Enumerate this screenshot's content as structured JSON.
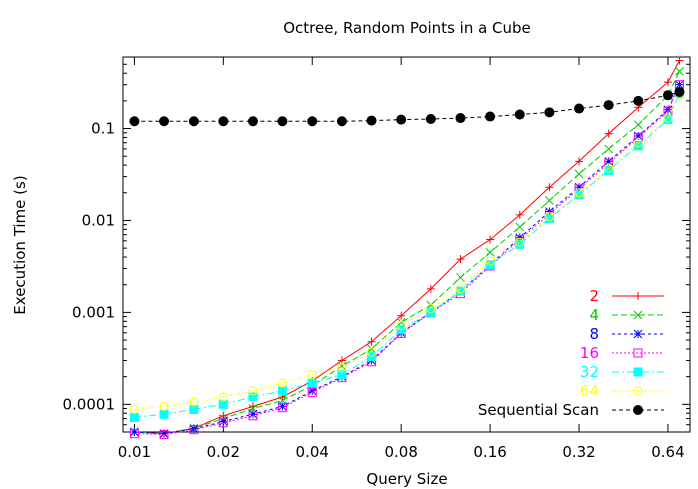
{
  "chart_data": {
    "type": "line",
    "title": "Octree, Random Points in a Cube",
    "xlabel": "Query Size",
    "ylabel": "Execution Time (s)",
    "x_scale": "log2",
    "y_scale": "log10",
    "xlim": [
      0.00915,
      0.76
    ],
    "ylim": [
      5e-05,
      0.6
    ],
    "x_ticks": [
      0.01,
      0.02,
      0.04,
      0.08,
      0.16,
      0.32,
      0.64
    ],
    "x_tick_labels": [
      "0.01",
      "0.02",
      "0.04",
      "0.08",
      "0.16",
      "0.32",
      "0.64"
    ],
    "y_ticks": [
      0.0001,
      0.001,
      0.01,
      0.1
    ],
    "y_tick_labels": [
      "0.0001",
      "0.001",
      "0.01",
      "0.1"
    ],
    "grid": false,
    "legend_position": "bottom-right",
    "x": [
      0.01,
      0.0126,
      0.0159,
      0.02,
      0.0252,
      0.0317,
      0.04,
      0.0504,
      0.0635,
      0.08,
      0.1008,
      0.127,
      0.16,
      0.2016,
      0.254,
      0.32,
      0.4032,
      0.508,
      0.64,
      0.7
    ],
    "series": [
      {
        "name": "2",
        "color": "#ff0000",
        "marker": "plus",
        "dash": "",
        "values": [
          5e-05,
          4.8e-05,
          5.5e-05,
          7.5e-05,
          9.5e-05,
          0.00012,
          0.00018,
          0.0003,
          0.00048,
          0.00092,
          0.0018,
          0.0038,
          0.0062,
          0.0115,
          0.023,
          0.044,
          0.088,
          0.17,
          0.32,
          0.55
        ]
      },
      {
        "name": "4",
        "color": "#00cc00",
        "marker": "cross",
        "dash": "6,3",
        "values": [
          5e-05,
          4.8e-05,
          5.5e-05,
          7e-05,
          9e-05,
          0.00011,
          0.00016,
          0.00026,
          0.0004,
          0.00078,
          0.0012,
          0.0024,
          0.0045,
          0.0085,
          0.0165,
          0.032,
          0.06,
          0.11,
          0.23,
          0.42
        ]
      },
      {
        "name": "8",
        "color": "#0000ff",
        "marker": "star",
        "dash": "3,3",
        "values": [
          5e-05,
          4.8e-05,
          5.4e-05,
          6.5e-05,
          7.8e-05,
          9.5e-05,
          0.00014,
          0.0002,
          0.0003,
          0.0006,
          0.001,
          0.0017,
          0.0033,
          0.0065,
          0.0125,
          0.023,
          0.044,
          0.083,
          0.16,
          0.3
        ]
      },
      {
        "name": "16",
        "color": "#ff00ff",
        "marker": "square",
        "dash": "2,2",
        "values": [
          4.8e-05,
          4.7e-05,
          5.3e-05,
          6.3e-05,
          7.5e-05,
          9.2e-05,
          0.000135,
          0.000195,
          0.00029,
          0.00059,
          0.00099,
          0.0016,
          0.0032,
          0.0062,
          0.0118,
          0.022,
          0.042,
          0.08,
          0.155,
          0.3
        ]
      },
      {
        "name": "32",
        "color": "#00ffff",
        "marker": "filled-square",
        "dash": "7,3,2,3",
        "values": [
          7.2e-05,
          7.8e-05,
          8.8e-05,
          0.0001,
          0.00012,
          0.00014,
          0.00017,
          0.00021,
          0.00033,
          0.00065,
          0.001,
          0.0017,
          0.0033,
          0.0055,
          0.0105,
          0.019,
          0.035,
          0.065,
          0.125,
          0.24
        ]
      },
      {
        "name": "64",
        "color": "#ffff00",
        "marker": "circle",
        "dash": "3,2,1,2",
        "values": [
          8.8e-05,
          9.5e-05,
          0.000105,
          0.00012,
          0.00014,
          0.00017,
          0.00021,
          0.00025,
          0.00037,
          0.00072,
          0.0011,
          0.0018,
          0.0036,
          0.0058,
          0.011,
          0.02,
          0.037,
          0.07,
          0.13,
          0.23
        ]
      },
      {
        "name": "Sequential Scan",
        "color": "#000000",
        "marker": "filled-circle",
        "dash": "4,3",
        "values": [
          0.12,
          0.12,
          0.12,
          0.12,
          0.12,
          0.12,
          0.12,
          0.12,
          0.122,
          0.125,
          0.127,
          0.13,
          0.135,
          0.142,
          0.15,
          0.165,
          0.18,
          0.2,
          0.23,
          0.25
        ]
      }
    ]
  }
}
